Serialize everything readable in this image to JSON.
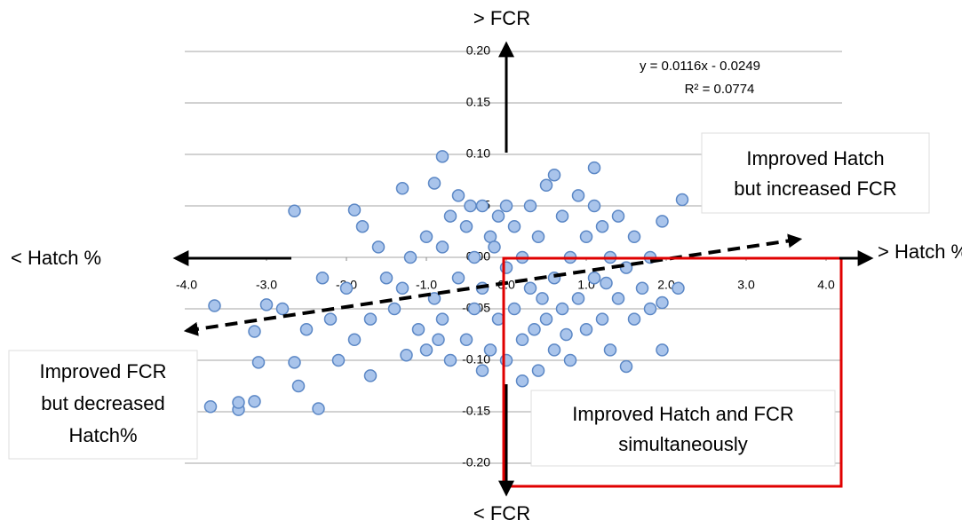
{
  "chart_data": {
    "type": "scatter",
    "color": "#a9c4eb",
    "edge_color": "#5b87c5",
    "grid": true,
    "xlim": [
      -4,
      4
    ],
    "ylim": [
      -0.2,
      0.2
    ],
    "xticks": [
      {
        "value": -4,
        "label": "-4.0"
      },
      {
        "value": -3,
        "label": "-3.0"
      },
      {
        "value": -2,
        "label": "-2.0"
      },
      {
        "value": -1,
        "label": "-1.0"
      },
      {
        "value": 0,
        "label": "0.0"
      },
      {
        "value": 1,
        "label": "1.0"
      },
      {
        "value": 2,
        "label": "2.0"
      },
      {
        "value": 3,
        "label": "3.0"
      },
      {
        "value": 4,
        "label": "4.0"
      }
    ],
    "yticks": [
      {
        "value": -0.2,
        "label": "-0.20"
      },
      {
        "value": -0.15,
        "label": "-0.15"
      },
      {
        "value": -0.1,
        "label": "-0.10"
      },
      {
        "value": -0.05,
        "label": "-0.05"
      },
      {
        "value": 0,
        "label": "0.00"
      },
      {
        "value": 0.05,
        "label": "0.05"
      },
      {
        "value": 0.1,
        "label": "0.10"
      },
      {
        "value": 0.15,
        "label": "0.15"
      },
      {
        "value": 0.2,
        "label": "0.20"
      }
    ],
    "axis_labels": {
      "y_top": "> FCR",
      "y_bottom": "< FCR",
      "x_left": "< Hatch %",
      "x_right": "> Hatch %"
    },
    "trendline": {
      "label": "y = 0.0116x - 0.0249",
      "r2_label": "R² = 0.0774",
      "slope": 0.0116,
      "intercept": -0.0249
    },
    "annotations": {
      "top_right": [
        "Improved Hatch",
        "but increased FCR"
      ],
      "bottom_left": [
        "Improved  FCR",
        "but decreased",
        "Hatch%"
      ],
      "bottom_right": [
        "Improved Hatch and FCR",
        "simultaneously"
      ]
    },
    "x": [
      -0.8,
      -2.65,
      -3.7,
      -3.35,
      -2.35,
      -3.35,
      -3.15,
      -3.65,
      -3.15,
      -3.1,
      -2.65,
      -2.6,
      -3.0,
      -2.8,
      -1.9,
      -1.8,
      -1.3,
      -0.9,
      1.1,
      2.2,
      1.95,
      1.95,
      1.5,
      2.15,
      1.95,
      -1.7,
      -1.5,
      -1.4,
      -1.3,
      -1.2,
      -1.1,
      -1.0,
      -1.0,
      -0.9,
      -0.8,
      -0.8,
      -0.7,
      -0.7,
      -0.6,
      -0.5,
      -0.5,
      -0.4,
      -0.4,
      -0.3,
      -0.3,
      -0.2,
      -0.2,
      -0.1,
      -0.1,
      0.0,
      0.0,
      0.1,
      0.1,
      0.2,
      0.2,
      0.3,
      0.3,
      0.4,
      0.4,
      0.5,
      0.5,
      0.6,
      0.6,
      0.7,
      0.7,
      0.8,
      0.8,
      0.9,
      0.9,
      1.0,
      1.0,
      1.1,
      1.2,
      1.2,
      1.3,
      1.3,
      1.4,
      1.4,
      1.5,
      1.6,
      1.6,
      1.7,
      1.8,
      1.8,
      -2.0,
      -2.2,
      -2.3,
      -2.5,
      -1.9,
      -1.7,
      -1.6,
      -2.1,
      -0.6,
      0.0,
      0.2,
      0.6,
      -0.3,
      1.1,
      0.35,
      -0.85,
      -0.15,
      0.75,
      1.25,
      -1.25,
      0.45,
      -0.45
    ],
    "values": [
      0.098,
      0.045,
      -0.145,
      -0.148,
      -0.147,
      -0.141,
      -0.14,
      -0.047,
      -0.072,
      -0.102,
      -0.102,
      -0.125,
      -0.046,
      -0.05,
      0.046,
      0.03,
      0.067,
      0.072,
      0.087,
      0.056,
      0.035,
      -0.09,
      -0.106,
      -0.03,
      -0.044,
      -0.115,
      -0.02,
      -0.05,
      -0.03,
      0.0,
      -0.07,
      0.02,
      -0.09,
      -0.04,
      0.01,
      -0.06,
      0.04,
      -0.1,
      -0.02,
      0.03,
      -0.08,
      0.0,
      -0.05,
      0.05,
      -0.03,
      -0.09,
      0.02,
      -0.06,
      0.04,
      -0.01,
      -0.1,
      0.03,
      -0.05,
      -0.08,
      0.0,
      0.05,
      -0.03,
      -0.11,
      0.02,
      -0.06,
      0.07,
      -0.02,
      -0.09,
      0.04,
      -0.05,
      0.0,
      -0.1,
      0.06,
      -0.04,
      -0.07,
      0.02,
      -0.02,
      0.03,
      -0.06,
      -0.09,
      0.0,
      0.04,
      -0.04,
      -0.01,
      0.02,
      -0.06,
      -0.03,
      0.0,
      -0.05,
      -0.03,
      -0.06,
      -0.02,
      -0.07,
      -0.08,
      -0.06,
      0.01,
      -0.1,
      0.06,
      0.05,
      -0.12,
      0.08,
      -0.11,
      0.05,
      -0.07,
      -0.08,
      0.01,
      -0.075,
      -0.025,
      -0.095,
      -0.04,
      0.05
    ]
  }
}
